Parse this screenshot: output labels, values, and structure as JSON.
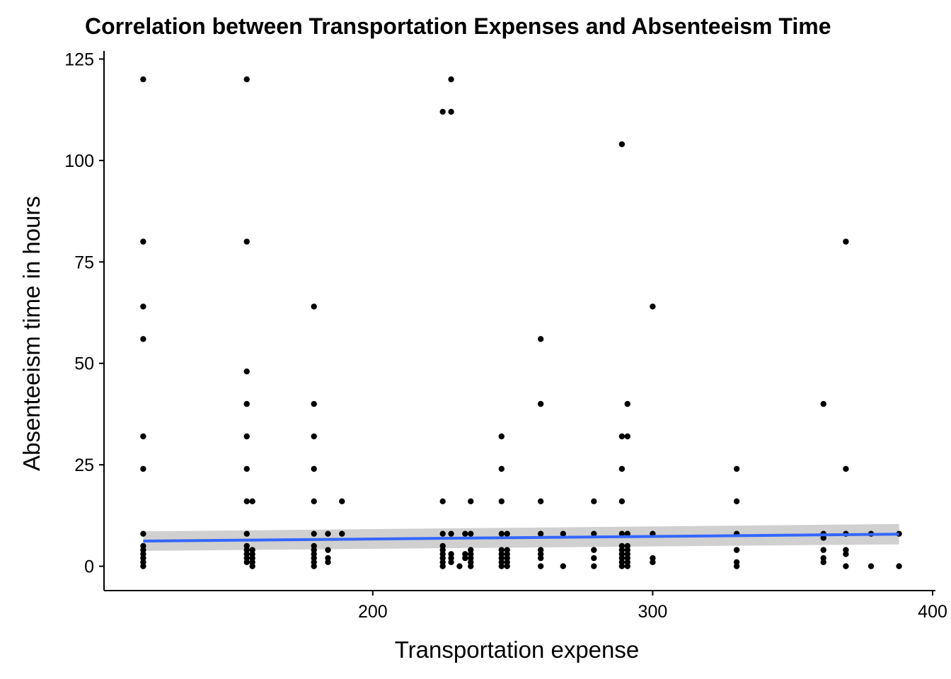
{
  "chart_data": {
    "type": "scatter",
    "title": "Correlation between Transportation Expenses and Absenteeism Time",
    "xlabel": "Transportation expense",
    "ylabel": "Absenteeism time in hours",
    "xlim": [
      104,
      401
    ],
    "ylim": [
      -6,
      127
    ],
    "x_ticks": [
      200,
      300,
      400
    ],
    "y_ticks": [
      0,
      25,
      50,
      75,
      100,
      125
    ],
    "grid": false,
    "legend": "none",
    "point_color": "#000000",
    "trend": {
      "method": "linear fit with confidence band",
      "color": "#3366ff",
      "band_color": "#c8c8c8",
      "x": [
        118,
        388
      ],
      "y": [
        6.2,
        7.9
      ],
      "band_lower": [
        3.8,
        5.4
      ],
      "band_upper": [
        8.6,
        10.4
      ]
    },
    "points": [
      [
        118,
        120
      ],
      [
        118,
        80
      ],
      [
        118,
        64
      ],
      [
        118,
        56
      ],
      [
        118,
        32
      ],
      [
        118,
        24
      ],
      [
        118,
        8
      ],
      [
        118,
        5
      ],
      [
        118,
        4
      ],
      [
        118,
        3
      ],
      [
        118,
        2
      ],
      [
        118,
        1
      ],
      [
        118,
        0
      ],
      [
        155,
        120
      ],
      [
        155,
        80
      ],
      [
        155,
        48
      ],
      [
        155,
        40
      ],
      [
        155,
        32
      ],
      [
        155,
        24
      ],
      [
        155,
        16
      ],
      [
        155,
        8
      ],
      [
        155,
        5
      ],
      [
        155,
        4
      ],
      [
        155,
        3
      ],
      [
        155,
        2
      ],
      [
        155,
        1
      ],
      [
        157,
        16
      ],
      [
        157,
        4
      ],
      [
        157,
        3
      ],
      [
        157,
        2
      ],
      [
        157,
        1
      ],
      [
        157,
        0
      ],
      [
        179,
        64
      ],
      [
        179,
        40
      ],
      [
        179,
        32
      ],
      [
        179,
        24
      ],
      [
        179,
        16
      ],
      [
        179,
        8
      ],
      [
        179,
        5
      ],
      [
        179,
        4
      ],
      [
        179,
        3
      ],
      [
        179,
        2
      ],
      [
        179,
        1
      ],
      [
        179,
        0
      ],
      [
        184,
        8
      ],
      [
        184,
        4
      ],
      [
        184,
        2
      ],
      [
        184,
        1
      ],
      [
        189,
        16
      ],
      [
        189,
        8
      ],
      [
        225,
        112
      ],
      [
        225,
        16
      ],
      [
        225,
        8
      ],
      [
        225,
        5
      ],
      [
        225,
        4
      ],
      [
        225,
        3
      ],
      [
        225,
        2
      ],
      [
        225,
        1
      ],
      [
        225,
        0
      ],
      [
        228,
        120
      ],
      [
        228,
        112
      ],
      [
        228,
        8
      ],
      [
        228,
        3
      ],
      [
        228,
        2
      ],
      [
        228,
        1
      ],
      [
        231,
        0
      ],
      [
        233,
        8
      ],
      [
        233,
        3
      ],
      [
        233,
        2
      ],
      [
        235,
        16
      ],
      [
        235,
        8
      ],
      [
        235,
        4
      ],
      [
        235,
        3
      ],
      [
        235,
        2
      ],
      [
        235,
        1
      ],
      [
        235,
        0
      ],
      [
        246,
        32
      ],
      [
        246,
        24
      ],
      [
        246,
        16
      ],
      [
        246,
        8
      ],
      [
        246,
        4
      ],
      [
        246,
        3
      ],
      [
        246,
        2
      ],
      [
        246,
        1
      ],
      [
        246,
        0
      ],
      [
        248,
        8
      ],
      [
        248,
        4
      ],
      [
        248,
        3
      ],
      [
        248,
        2
      ],
      [
        248,
        1
      ],
      [
        248,
        0
      ],
      [
        260,
        56
      ],
      [
        260,
        40
      ],
      [
        260,
        16
      ],
      [
        260,
        8
      ],
      [
        260,
        4
      ],
      [
        260,
        3
      ],
      [
        260,
        2
      ],
      [
        260,
        0
      ],
      [
        268,
        8
      ],
      [
        268,
        0
      ],
      [
        279,
        16
      ],
      [
        279,
        8
      ],
      [
        279,
        4
      ],
      [
        279,
        2
      ],
      [
        279,
        0
      ],
      [
        289,
        104
      ],
      [
        289,
        32
      ],
      [
        289,
        24
      ],
      [
        289,
        16
      ],
      [
        289,
        8
      ],
      [
        289,
        5
      ],
      [
        289,
        4
      ],
      [
        289,
        3
      ],
      [
        289,
        2
      ],
      [
        289,
        1
      ],
      [
        289,
        0
      ],
      [
        291,
        40
      ],
      [
        291,
        32
      ],
      [
        291,
        8
      ],
      [
        291,
        5
      ],
      [
        291,
        4
      ],
      [
        291,
        3
      ],
      [
        291,
        2
      ],
      [
        291,
        1
      ],
      [
        291,
        0
      ],
      [
        300,
        64
      ],
      [
        300,
        8
      ],
      [
        300,
        2
      ],
      [
        300,
        1
      ],
      [
        330,
        24
      ],
      [
        330,
        16
      ],
      [
        330,
        8
      ],
      [
        330,
        4
      ],
      [
        330,
        1
      ],
      [
        330,
        0
      ],
      [
        361,
        40
      ],
      [
        361,
        8
      ],
      [
        361,
        7
      ],
      [
        361,
        4
      ],
      [
        361,
        2
      ],
      [
        361,
        1
      ],
      [
        369,
        80
      ],
      [
        369,
        24
      ],
      [
        369,
        8
      ],
      [
        369,
        4
      ],
      [
        369,
        3
      ],
      [
        369,
        0
      ],
      [
        378,
        8
      ],
      [
        378,
        0
      ],
      [
        388,
        8
      ],
      [
        388,
        0
      ]
    ]
  }
}
